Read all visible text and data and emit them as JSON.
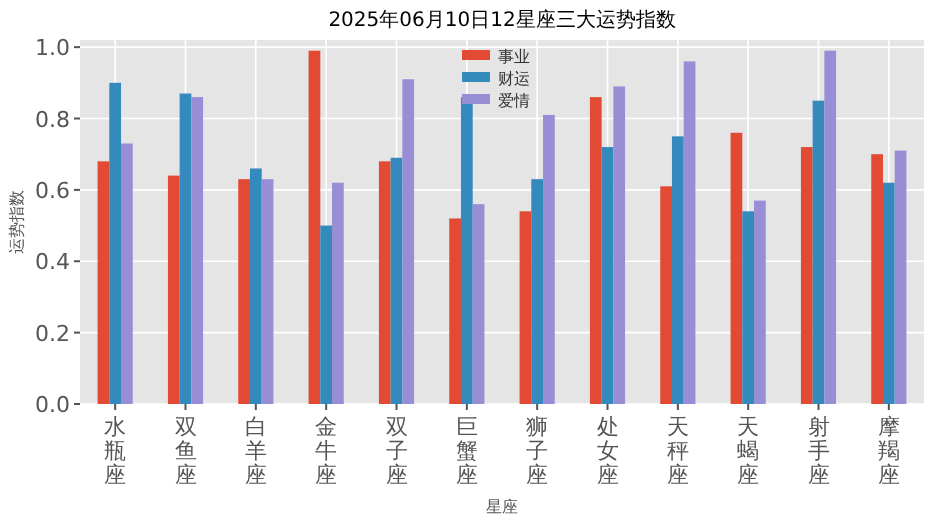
{
  "chart_data": {
    "type": "bar",
    "title": "2025年06月10日12星座三大运势指数",
    "xlabel": "星座",
    "ylabel": "运势指数",
    "categories": [
      "水瓶座",
      "双鱼座",
      "白羊座",
      "金牛座",
      "双子座",
      "巨蟹座",
      "狮子座",
      "处女座",
      "天秤座",
      "天蝎座",
      "射手座",
      "摩羯座"
    ],
    "series": [
      {
        "name": "事业",
        "color": "#e24a33",
        "values": [
          0.68,
          0.64,
          0.63,
          0.99,
          0.68,
          0.52,
          0.54,
          0.86,
          0.61,
          0.76,
          0.72,
          0.7
        ]
      },
      {
        "name": "财运",
        "color": "#348abd",
        "values": [
          0.9,
          0.87,
          0.66,
          0.5,
          0.69,
          0.86,
          0.63,
          0.72,
          0.75,
          0.54,
          0.85,
          0.62
        ]
      },
      {
        "name": "爱情",
        "color": "#988ed5",
        "values": [
          0.73,
          0.86,
          0.63,
          0.62,
          0.91,
          0.56,
          0.81,
          0.89,
          0.96,
          0.57,
          0.99,
          0.71
        ]
      }
    ],
    "ylim": [
      0,
      1.02
    ],
    "yticks": [
      {
        "value": 0,
        "label": "0.0"
      },
      {
        "value": 0.2,
        "label": "0.2"
      },
      {
        "value": 0.4,
        "label": "0.4"
      },
      {
        "value": 0.6,
        "label": "0.6"
      },
      {
        "value": 0.8,
        "label": "0.8"
      },
      {
        "value": 1,
        "label": "1.0"
      }
    ],
    "grid": true,
    "legend": "top"
  }
}
